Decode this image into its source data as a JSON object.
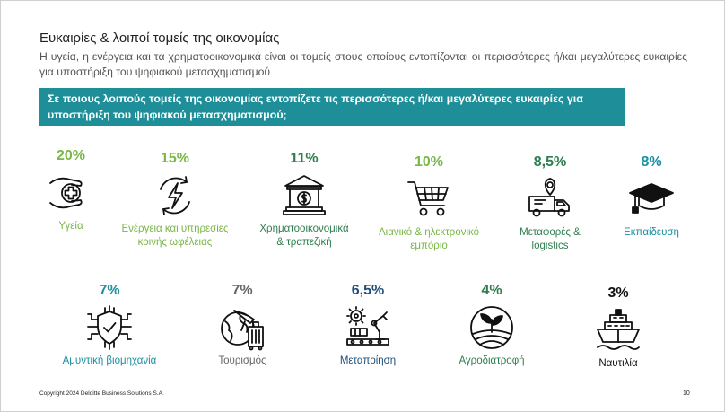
{
  "slide": {
    "title": "Ευκαιρίες & λοιποί τομείς της οικονομίας",
    "subtitle": "Η υγεία, η ενέργεια και τα χρηματοοικονομικά είναι οι τομείς στους οποίους εντοπίζονται οι περισσότερες ή/και μεγαλύτερες ευκαιρίες για υποστήριξη του ψηφιακού μετασχηματισμού",
    "question": "Σε ποιους λοιπούς τομείς της οικονομίας εντοπίζετε τις περισσότερες ή/και μεγαλύτερες ευκαιρίες για υποστήριξη του ψηφιακού μετασχηματισμού;",
    "footer": "Copyright 2024 Deloitte Business Solutions S.A.",
    "page_number": "10"
  },
  "colors": {
    "banner": "#1e8e98",
    "light_green": "#7ab648",
    "dark_green": "#2e7d4f",
    "teal": "#1a8fa0",
    "navy": "#1f4e79",
    "gray": "#666666",
    "black": "#111111"
  },
  "sectors": [
    {
      "pct": "20%",
      "label_lines": [
        "Υγεία"
      ],
      "icon": "health-hands-cross-icon"
    },
    {
      "pct": "15%",
      "label_lines": [
        "Ενέργεια και υπηρεσίες",
        "κοινής ωφέλειας"
      ],
      "icon": "energy-bolt-icon"
    },
    {
      "pct": "11%",
      "label_lines": [
        "Χρηματοοικονομικά",
        "& τραπεζική"
      ],
      "icon": "bank-icon"
    },
    {
      "pct": "10%",
      "label_lines": [
        "Λιανικό & ηλεκτρονικό",
        "εμπόριο"
      ],
      "icon": "shopping-cart-icon"
    },
    {
      "pct": "8,5%",
      "label_lines": [
        "Μεταφορές &",
        "logistics"
      ],
      "icon": "delivery-truck-icon"
    },
    {
      "pct": "8%",
      "label_lines": [
        "Εκπαίδευση"
      ],
      "icon": "graduation-cap-icon"
    },
    {
      "pct": "7%",
      "label_lines": [
        "Αμυντική βιομηχανία"
      ],
      "icon": "defense-shield-icon"
    },
    {
      "pct": "7%",
      "label_lines": [
        "Τουρισμός"
      ],
      "icon": "tourism-globe-luggage-icon"
    },
    {
      "pct": "6,5%",
      "label_lines": [
        "Μεταποίηση"
      ],
      "icon": "manufacturing-robot-arm-icon"
    },
    {
      "pct": "4%",
      "label_lines": [
        "Αγροδιατροφή"
      ],
      "icon": "agrifood-sprout-icon"
    },
    {
      "pct": "3%",
      "label_lines": [
        "Ναυτιλία"
      ],
      "icon": "shipping-ship-icon"
    }
  ]
}
